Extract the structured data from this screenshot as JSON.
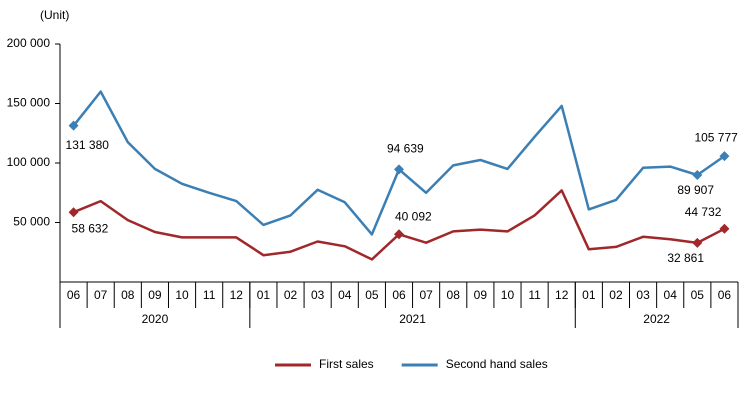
{
  "chart_data": {
    "type": "line",
    "y_label": "(Unit)",
    "year_groups": [
      {
        "label": "2020",
        "months": [
          "06",
          "07",
          "08",
          "09",
          "10",
          "11",
          "12"
        ]
      },
      {
        "label": "2021",
        "months": [
          "01",
          "02",
          "03",
          "04",
          "05",
          "06",
          "07",
          "08",
          "09",
          "10",
          "11",
          "12"
        ]
      },
      {
        "label": "2022",
        "months": [
          "01",
          "02",
          "03",
          "04",
          "05",
          "06"
        ]
      }
    ],
    "series": [
      {
        "name": "First sales",
        "color": "#a0282a",
        "values": [
          58632,
          68000,
          52000,
          42000,
          37500,
          37500,
          37500,
          22500,
          25500,
          34000,
          30000,
          19000,
          40092,
          33000,
          42500,
          44000,
          42500,
          56000,
          77000,
          27500,
          29500,
          38000,
          36000,
          32861,
          44732
        ],
        "value_labels": [
          "58 632",
          null,
          null,
          null,
          null,
          null,
          null,
          null,
          null,
          null,
          null,
          null,
          "40 092",
          null,
          null,
          null,
          null,
          null,
          null,
          null,
          null,
          null,
          null,
          "32 861",
          "44 732"
        ]
      },
      {
        "name": "Second hand sales",
        "color": "#3b7fb4",
        "values": [
          131380,
          160000,
          117500,
          95000,
          82500,
          75000,
          68000,
          48000,
          56000,
          77500,
          67000,
          40000,
          94639,
          75000,
          98000,
          102500,
          95000,
          122000,
          148000,
          61000,
          69000,
          96000,
          97000,
          89907,
          105777
        ],
        "value_labels": [
          "131 380",
          null,
          null,
          null,
          null,
          null,
          null,
          null,
          null,
          null,
          null,
          null,
          "94 639",
          null,
          null,
          null,
          null,
          null,
          null,
          null,
          null,
          null,
          null,
          "89 907",
          "105 777"
        ]
      }
    ],
    "ylim": [
      0,
      200000
    ],
    "yticks": [
      {
        "value": 50000,
        "label": "50 000"
      },
      {
        "value": 100000,
        "label": "100 000"
      },
      {
        "value": 150000,
        "label": "150 000"
      },
      {
        "value": 200000,
        "label": "200 000"
      }
    ],
    "grid": false,
    "legend": "bottom"
  }
}
